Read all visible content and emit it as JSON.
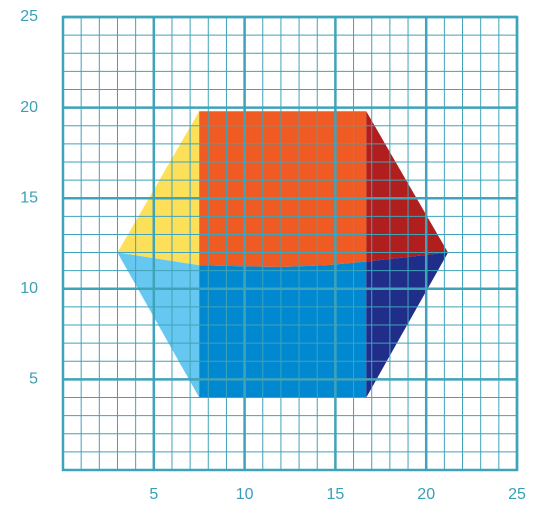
{
  "chart_data": {
    "type": "polygon",
    "xlim": [
      0,
      25
    ],
    "ylim": [
      0,
      25
    ],
    "xticks": [
      5,
      10,
      15,
      20,
      25
    ],
    "yticks": [
      5,
      10,
      15,
      20,
      25
    ],
    "minor_xticks": [
      0,
      1,
      2,
      3,
      4,
      5,
      6,
      7,
      8,
      9,
      10,
      11,
      12,
      13,
      14,
      15,
      16,
      17,
      18,
      19,
      20,
      21,
      22,
      23,
      24,
      25
    ],
    "minor_yticks": [
      0,
      1,
      2,
      3,
      4,
      5,
      6,
      7,
      8,
      9,
      10,
      11,
      12,
      13,
      14,
      15,
      16,
      17,
      18,
      19,
      20,
      21,
      22,
      23,
      24,
      25
    ],
    "grid": true,
    "grid_color": "#3fa3ba",
    "tick_color": "#3a9fb5",
    "series": [
      {
        "color": "#fde05a",
        "x": [
          3,
          7.5,
          7.5
        ],
        "y": [
          12,
          19.8,
          11.3
        ]
      },
      {
        "color": "#f05a23",
        "x": [
          7.5,
          16.7,
          16.7,
          14.5,
          12,
          9.5,
          7.5
        ],
        "y": [
          19.8,
          19.8,
          11.5,
          11.3,
          11.2,
          11.25,
          11.3
        ]
      },
      {
        "color": "#b01e1e",
        "x": [
          16.7,
          21.2,
          16.7
        ],
        "y": [
          19.8,
          12,
          11.5
        ]
      },
      {
        "color": "#66c8f0",
        "x": [
          3,
          7.5,
          7.5
        ],
        "y": [
          12,
          11.3,
          4
        ]
      },
      {
        "color": "#0089d0",
        "x": [
          7.5,
          9.5,
          12,
          14.5,
          16.7,
          16.7,
          7.5
        ],
        "y": [
          11.3,
          11.25,
          11.2,
          11.3,
          11.5,
          4,
          4
        ]
      },
      {
        "color": "#202e8a",
        "x": [
          16.7,
          21.2,
          16.7
        ],
        "y": [
          11.5,
          12,
          4
        ]
      }
    ]
  }
}
